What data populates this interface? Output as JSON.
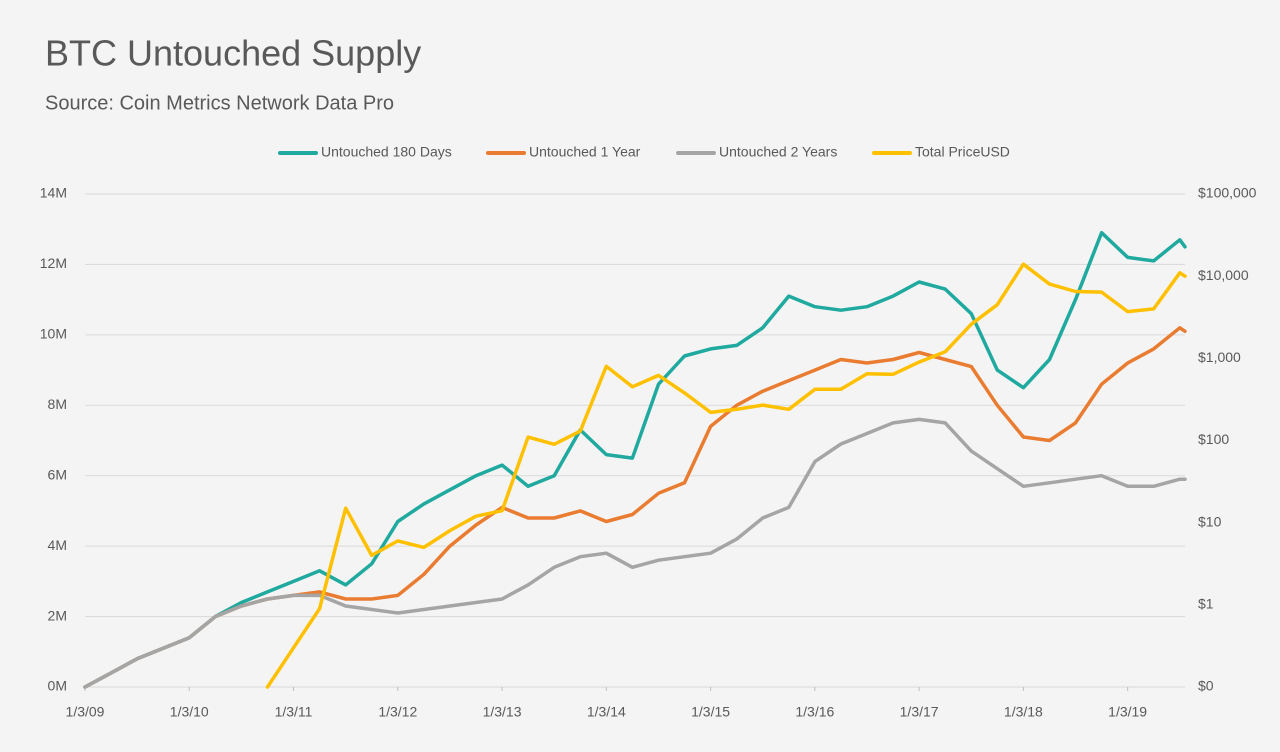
{
  "chart_data": {
    "type": "line",
    "title": "BTC Untouched Supply",
    "subtitle": "Source:  Coin Metrics Network Data Pro",
    "legend": "top",
    "grid": true,
    "y2_log": true,
    "x": [
      2009,
      2009.25,
      2009.5,
      2009.75,
      2010,
      2010.25,
      2010.5,
      2010.75,
      2011,
      2011.25,
      2011.5,
      2011.75,
      2012,
      2012.25,
      2012.5,
      2012.75,
      2013,
      2013.25,
      2013.5,
      2013.75,
      2014,
      2014.25,
      2014.5,
      2014.75,
      2015,
      2015.25,
      2015.5,
      2015.75,
      2016,
      2016.25,
      2016.5,
      2016.75,
      2017,
      2017.25,
      2017.5,
      2017.75,
      2018,
      2018.25,
      2018.5,
      2018.75,
      2019,
      2019.25,
      2019.5,
      2019.55
    ],
    "xlim": [
      2009,
      2019.55
    ],
    "xticks": [
      {
        "value": 2009,
        "label": "1/3/09"
      },
      {
        "value": 2010,
        "label": "1/3/10"
      },
      {
        "value": 2011,
        "label": "1/3/11"
      },
      {
        "value": 2012,
        "label": "1/3/12"
      },
      {
        "value": 2013,
        "label": "1/3/13"
      },
      {
        "value": 2014,
        "label": "1/3/14"
      },
      {
        "value": 2015,
        "label": "1/3/15"
      },
      {
        "value": 2016,
        "label": "1/3/16"
      },
      {
        "value": 2017,
        "label": "1/3/17"
      },
      {
        "value": 2018,
        "label": "1/3/18"
      },
      {
        "value": 2019,
        "label": "1/3/19"
      }
    ],
    "ylim": [
      0,
      14
    ],
    "yticks": [
      {
        "value": 0,
        "label": "0M"
      },
      {
        "value": 2,
        "label": "2M"
      },
      {
        "value": 4,
        "label": "4M"
      },
      {
        "value": 6,
        "label": "6M"
      },
      {
        "value": 8,
        "label": "8M"
      },
      {
        "value": 10,
        "label": "10M"
      },
      {
        "value": 12,
        "label": "12M"
      },
      {
        "value": 14,
        "label": "14M"
      }
    ],
    "y2lim": [
      0.1,
      100000
    ],
    "y2ticks": [
      {
        "value": 0.1,
        "label": "$0"
      },
      {
        "value": 1,
        "label": "$1"
      },
      {
        "value": 10,
        "label": "$10"
      },
      {
        "value": 100,
        "label": "$100"
      },
      {
        "value": 1000,
        "label": "$1,000"
      },
      {
        "value": 10000,
        "label": "$10,000"
      },
      {
        "value": 100000,
        "label": "$100,000"
      }
    ],
    "series": [
      {
        "name": "Untouched 180 Days",
        "color": "#1fa99f",
        "values": [
          0,
          0.4,
          0.8,
          1.1,
          1.4,
          2.0,
          2.4,
          2.7,
          3.0,
          3.3,
          2.9,
          3.5,
          4.7,
          5.2,
          5.6,
          6.0,
          6.3,
          5.7,
          6.0,
          7.3,
          6.6,
          6.5,
          8.6,
          9.4,
          9.6,
          9.7,
          10.2,
          11.1,
          10.8,
          10.7,
          10.8,
          11.1,
          11.5,
          11.3,
          10.6,
          9.0,
          8.5,
          9.3,
          11.0,
          12.9,
          12.2,
          12.1,
          12.7,
          12.5
        ]
      },
      {
        "name": "Untouched 1 Year",
        "color": "#e97c30",
        "values": [
          0,
          0.4,
          0.8,
          1.1,
          1.4,
          2.0,
          2.3,
          2.5,
          2.6,
          2.7,
          2.5,
          2.5,
          2.6,
          3.2,
          4.0,
          4.6,
          5.1,
          4.8,
          4.8,
          5.0,
          4.7,
          4.9,
          5.5,
          5.8,
          7.4,
          8.0,
          8.4,
          8.7,
          9.0,
          9.3,
          9.2,
          9.3,
          9.5,
          9.3,
          9.1,
          8.0,
          7.1,
          7.0,
          7.5,
          8.6,
          9.2,
          9.6,
          10.2,
          10.1
        ]
      },
      {
        "name": "Untouched 2 Years",
        "color": "#a5a5a5",
        "values": [
          0,
          0.4,
          0.8,
          1.1,
          1.4,
          2.0,
          2.3,
          2.5,
          2.6,
          2.6,
          2.3,
          2.2,
          2.1,
          2.2,
          2.3,
          2.4,
          2.5,
          2.9,
          3.4,
          3.7,
          3.8,
          3.4,
          3.6,
          3.7,
          3.8,
          4.2,
          4.8,
          5.1,
          6.4,
          6.9,
          7.2,
          7.5,
          7.6,
          7.5,
          6.7,
          6.2,
          5.7,
          5.8,
          5.9,
          6.0,
          5.7,
          5.7,
          5.9,
          5.9
        ]
      },
      {
        "name": "Total PriceUSD",
        "color": "#ffc000",
        "axis": "y2",
        "values": [
          null,
          null,
          null,
          null,
          null,
          null,
          null,
          0.1,
          0.3,
          0.9,
          15,
          4,
          6,
          5,
          8,
          12,
          14,
          110,
          90,
          130,
          800,
          450,
          620,
          380,
          220,
          240,
          270,
          240,
          420,
          420,
          650,
          640,
          900,
          1200,
          2600,
          4500,
          14000,
          8000,
          6500,
          6400,
          3700,
          4000,
          11000,
          10000
        ]
      }
    ]
  }
}
